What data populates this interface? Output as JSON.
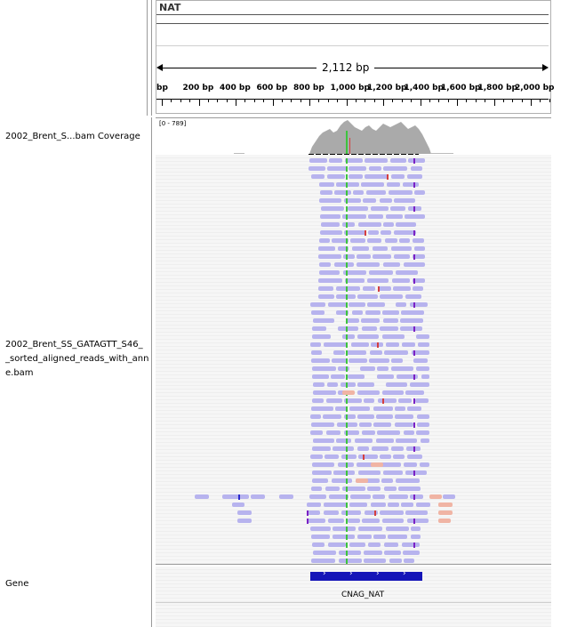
{
  "header": {
    "locus_name": "NAT"
  },
  "ruler": {
    "span_label": "2,112 bp",
    "ticks": [
      {
        "label": "bp"
      },
      {
        "label": "200 bp"
      },
      {
        "label": "400 bp"
      },
      {
        "label": "600 bp"
      },
      {
        "label": "800 bp"
      },
      {
        "label": "1,000 bp"
      },
      {
        "label": "1,200 bp"
      },
      {
        "label": "1,400 bp"
      },
      {
        "label": "1,600 bp"
      },
      {
        "label": "1,800 bp"
      },
      {
        "label": "2,000 bp"
      }
    ]
  },
  "tracks": {
    "coverage": {
      "name": "2002_Brent_S...bam Coverage",
      "range": "[0 - 789]"
    },
    "alignment": {
      "name_lines": [
        "2002_Brent_SS_GATAGTT_S46_",
        "_sorted_aligned_reads_with_ann",
        "e.bam"
      ]
    },
    "gene": {
      "name": "Gene",
      "feature_label": "CNAG_NAT"
    }
  },
  "colors": {
    "read": "#b7b3ee",
    "soft_clip": "#f0b4a4",
    "mismatch": "#d43f3f",
    "insertion": "#7b21c4",
    "green_snp": "#3ec43e",
    "coverage": "#aaaaaa",
    "gene_block": "#1515b8"
  }
}
